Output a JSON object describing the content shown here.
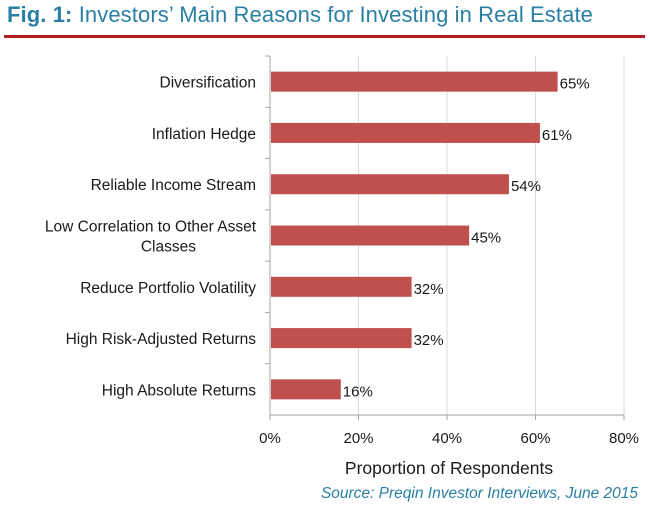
{
  "title_prefix": "Fig. 1:",
  "title_text": "Investors’ Main Reasons for Investing in Real Estate",
  "source": "Source: Preqin Investor Interviews, June 2015",
  "colors": {
    "bar": "#c0504d",
    "title": "#2a7fa4",
    "rule": "#b01e23",
    "grid": "#d9d9d9",
    "axis": "#a6a6a6",
    "text": "#1a1a1a"
  },
  "chart_data": {
    "type": "bar",
    "orientation": "horizontal",
    "categories": [
      [
        "Diversification"
      ],
      [
        "Inflation Hedge"
      ],
      [
        "Reliable Income Stream"
      ],
      [
        "Low Correlation to Other Asset",
        "Classes"
      ],
      [
        "Reduce Portfolio Volatility"
      ],
      [
        "High Risk-Adjusted Returns"
      ],
      [
        "High Absolute Returns"
      ]
    ],
    "values": [
      65,
      61,
      54,
      45,
      32,
      32,
      16
    ],
    "data_labels": [
      "65%",
      "61%",
      "54%",
      "45%",
      "32%",
      "32%",
      "16%"
    ],
    "xlabel": "Proportion of Respondents",
    "xlim": [
      0,
      80
    ],
    "xticks": [
      0,
      20,
      40,
      60,
      80
    ],
    "xtick_labels": [
      "0%",
      "20%",
      "40%",
      "60%",
      "80%"
    ],
    "grid": true,
    "legend": false
  }
}
